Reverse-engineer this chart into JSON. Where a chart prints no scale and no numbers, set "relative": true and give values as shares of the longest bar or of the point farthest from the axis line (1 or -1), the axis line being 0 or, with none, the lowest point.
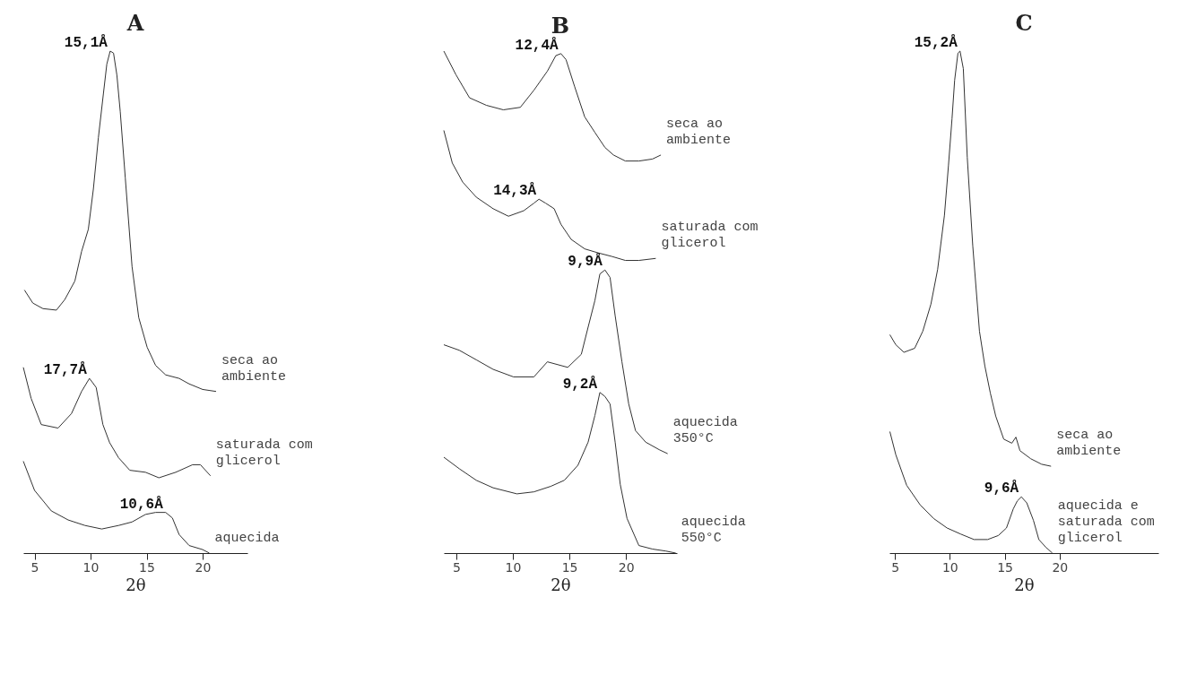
{
  "chart_data": [
    {
      "type": "line",
      "title": "A",
      "xlabel": "2θ",
      "xlim": [
        4,
        24
      ],
      "xticks": [
        5,
        10,
        15,
        20
      ],
      "relative": true,
      "series": [
        {
          "name": "seca ao ambiente",
          "color": "#333333",
          "x": [
            4.1,
            4.85,
            5.75,
            6.95,
            7.7,
            8.6,
            9.2,
            9.8,
            10.25,
            10.7,
            11.15,
            11.45,
            11.75,
            12.05,
            12.35,
            12.65,
            13.1,
            13.7,
            14.3,
            15.05,
            15.8,
            16.7,
            17.9,
            18.8,
            20.0,
            21.2
          ],
          "values": [
            0.524,
            0.498,
            0.487,
            0.484,
            0.505,
            0.542,
            0.601,
            0.645,
            0.725,
            0.828,
            0.916,
            0.974,
            1.0,
            0.996,
            0.952,
            0.879,
            0.747,
            0.571,
            0.469,
            0.41,
            0.374,
            0.355,
            0.348,
            0.337,
            0.326,
            0.322
          ]
        },
        {
          "name": "saturada com glicerol",
          "color": "#333333",
          "x": [
            4.0,
            4.7,
            5.6,
            7.1,
            8.3,
            9.2,
            9.9,
            10.5,
            11.1,
            11.7,
            12.5,
            13.5,
            14.9,
            16.1,
            17.6,
            19.1,
            19.8,
            20.7
          ],
          "values": [
            0.37,
            0.308,
            0.256,
            0.249,
            0.278,
            0.322,
            0.348,
            0.33,
            0.256,
            0.22,
            0.19,
            0.165,
            0.161,
            0.15,
            0.161,
            0.176,
            0.176,
            0.154
          ]
        },
        {
          "name": "aquecida",
          "color": "#333333",
          "x": [
            4.0,
            5.0,
            6.5,
            8.0,
            9.5,
            11.0,
            12.5,
            13.7,
            14.9,
            15.8,
            16.7,
            17.3,
            17.9,
            18.8,
            20.0,
            20.6
          ],
          "values": [
            0.183,
            0.125,
            0.084,
            0.066,
            0.055,
            0.048,
            0.055,
            0.062,
            0.077,
            0.081,
            0.081,
            0.07,
            0.037,
            0.015,
            0.007,
            0.0
          ]
        }
      ],
      "annotations": [
        {
          "text": "15,1Å",
          "x": 11.75,
          "y": 1.0
        },
        {
          "text": "17,7Å",
          "x": 9.9,
          "y": 0.348
        },
        {
          "text": "10,6Å",
          "x": 16.7,
          "y": 0.081
        }
      ]
    },
    {
      "type": "line",
      "title": "B",
      "xlabel": "2θ",
      "xlim": [
        3.9,
        24.5
      ],
      "xticks": [
        5,
        10,
        15,
        20
      ],
      "relative": true,
      "series": [
        {
          "name": "seca ao ambiente",
          "color": "#333333",
          "x": [
            3.9,
            4.97,
            6.17,
            7.66,
            9.16,
            10.66,
            11.86,
            13.05,
            13.8,
            14.25,
            14.7,
            15.45,
            16.35,
            17.25,
            18.14,
            18.89,
            19.94,
            21.14,
            22.34,
            23.08
          ],
          "values": [
            1.0,
            0.953,
            0.907,
            0.892,
            0.883,
            0.888,
            0.922,
            0.96,
            0.991,
            0.995,
            0.983,
            0.93,
            0.869,
            0.838,
            0.808,
            0.793,
            0.781,
            0.781,
            0.785,
            0.793
          ]
        },
        {
          "name": "saturada com glicerol",
          "color": "#333333",
          "x": [
            3.9,
            4.65,
            5.57,
            6.77,
            8.26,
            9.61,
            10.96,
            11.86,
            12.31,
            12.9,
            13.65,
            14.25,
            15.15,
            16.35,
            17.54,
            18.74,
            19.94,
            21.14,
            22.63
          ],
          "values": [
            0.842,
            0.777,
            0.739,
            0.709,
            0.686,
            0.671,
            0.682,
            0.697,
            0.705,
            0.697,
            0.686,
            0.655,
            0.625,
            0.606,
            0.598,
            0.591,
            0.583,
            0.583,
            0.587
          ]
        },
        {
          "name": "aquecida 350°C",
          "color": "#333333",
          "x": [
            3.9,
            5.27,
            6.77,
            8.26,
            10.06,
            11.86,
            13.05,
            14.85,
            16.05,
            16.65,
            17.25,
            17.69,
            18.14,
            18.59,
            19.04,
            19.64,
            20.24,
            20.84,
            21.74,
            22.93,
            23.68
          ],
          "values": [
            0.415,
            0.404,
            0.385,
            0.366,
            0.351,
            0.351,
            0.381,
            0.37,
            0.396,
            0.45,
            0.503,
            0.556,
            0.564,
            0.549,
            0.473,
            0.381,
            0.297,
            0.244,
            0.221,
            0.206,
            0.198
          ]
        },
        {
          "name": "aquecida 550°C",
          "color": "#333333",
          "x": [
            3.9,
            5.27,
            6.77,
            8.26,
            10.36,
            11.86,
            13.35,
            14.55,
            15.75,
            16.65,
            17.25,
            17.69,
            18.14,
            18.59,
            19.04,
            19.49,
            20.09,
            21.14,
            22.34,
            23.53,
            24.4
          ],
          "values": [
            0.191,
            0.168,
            0.145,
            0.13,
            0.118,
            0.122,
            0.133,
            0.145,
            0.175,
            0.221,
            0.274,
            0.32,
            0.312,
            0.297,
            0.221,
            0.137,
            0.069,
            0.015,
            0.008,
            0.004,
            0.0
          ]
        }
      ],
      "annotations": [
        {
          "text": "12,4Å",
          "x": 14.25,
          "y": 0.995
        },
        {
          "text": "14,3Å",
          "x": 12.31,
          "y": 0.705
        },
        {
          "text": "9,9Å",
          "x": 18.14,
          "y": 0.564
        },
        {
          "text": "9,2Å",
          "x": 17.69,
          "y": 0.32
        }
      ]
    },
    {
      "type": "line",
      "title": "C",
      "xlabel": "2θ",
      "xlim": [
        4.5,
        29
      ],
      "xticks": [
        5,
        10,
        15,
        20
      ],
      "relative": true,
      "series": [
        {
          "name": "seca ao ambiente",
          "color": "#333333",
          "x": [
            4.54,
            5.08,
            5.82,
            6.8,
            7.54,
            8.28,
            8.89,
            9.51,
            9.88,
            10.2,
            10.44,
            10.74,
            10.93,
            11.23,
            11.59,
            12.09,
            12.7,
            13.19,
            13.69,
            14.18,
            14.91,
            15.65,
            16.02,
            16.39,
            17.37,
            18.36,
            19.22
          ],
          "values": [
            0.435,
            0.415,
            0.4,
            0.408,
            0.442,
            0.496,
            0.565,
            0.673,
            0.773,
            0.865,
            0.942,
            0.996,
            1.0,
            0.965,
            0.788,
            0.612,
            0.442,
            0.373,
            0.319,
            0.273,
            0.227,
            0.219,
            0.231,
            0.204,
            0.188,
            0.177,
            0.173
          ]
        },
        {
          "name": "aquecida e saturada com glicerol",
          "color": "#333333",
          "x": [
            4.54,
            5.08,
            6.07,
            7.3,
            8.52,
            9.75,
            10.98,
            12.21,
            13.44,
            14.42,
            15.16,
            15.78,
            16.15,
            16.52,
            17.01,
            17.62,
            18.11,
            18.73,
            19.34
          ],
          "values": [
            0.242,
            0.196,
            0.135,
            0.096,
            0.069,
            0.05,
            0.038,
            0.027,
            0.027,
            0.035,
            0.05,
            0.088,
            0.104,
            0.112,
            0.1,
            0.065,
            0.027,
            0.012,
            0.0
          ]
        }
      ],
      "annotations": [
        {
          "text": "15,2Å",
          "x": 10.93,
          "y": 1.0
        },
        {
          "text": "9,6Å",
          "x": 16.52,
          "y": 0.112
        }
      ]
    }
  ]
}
